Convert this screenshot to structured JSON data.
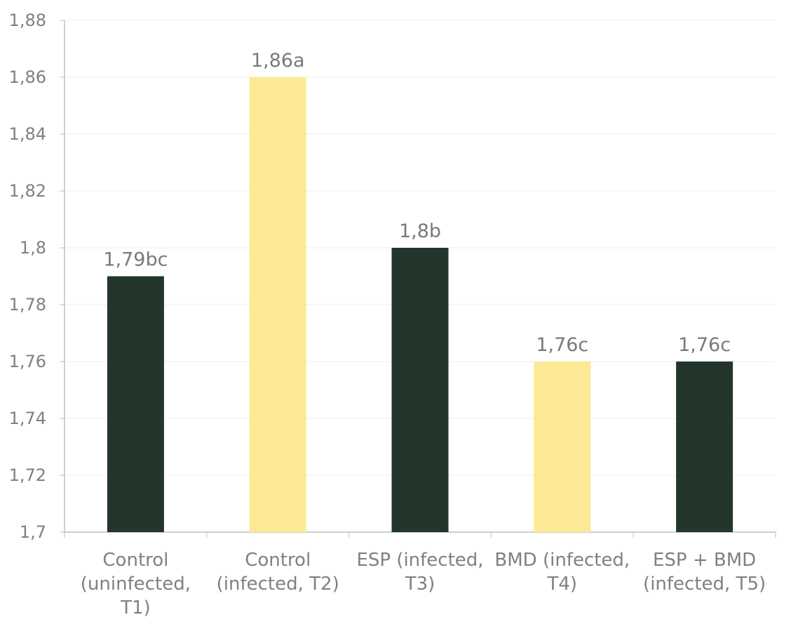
{
  "chart_data": {
    "type": "bar",
    "categories": [
      [
        "Control",
        "(uninfected,",
        "T1)"
      ],
      [
        "Control",
        "(infected, T2)"
      ],
      [
        "ESP (infected,",
        "T3)"
      ],
      [
        "BMD (infected,",
        "T4)"
      ],
      [
        "ESP + BMD",
        "(infected, T5)"
      ]
    ],
    "values": [
      1.79,
      1.86,
      1.8,
      1.76,
      1.76
    ],
    "data_labels": [
      "1,79bc",
      "1,86a",
      "1,8b",
      "1,76c",
      "1,76c"
    ],
    "bar_colors": [
      "#22362c",
      "#fde995",
      "#22362c",
      "#fde995",
      "#22362c"
    ],
    "ylim": [
      1.7,
      1.88
    ],
    "yticks": [
      1.7,
      1.72,
      1.74,
      1.76,
      1.78,
      1.8,
      1.82,
      1.84,
      1.86,
      1.88
    ],
    "ytick_labels": [
      "1,7",
      "1,72",
      "1,74",
      "1,76",
      "1,78",
      "1,8",
      "1,82",
      "1,84",
      "1,86",
      "1,88"
    ],
    "grid": true,
    "title": "",
    "xlabel": "",
    "ylabel": ""
  }
}
